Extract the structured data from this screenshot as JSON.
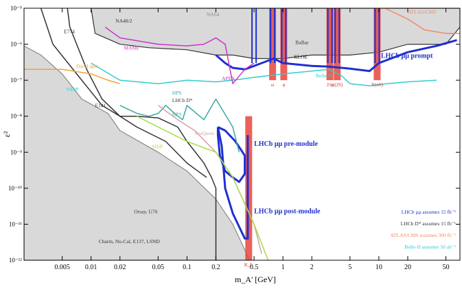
{
  "chart_data": {
    "type": "line",
    "xlabel": "m_A' [GeV]",
    "ylabel": "ε²",
    "x_scale": "log",
    "y_scale": "log",
    "xlim": [
      0.002,
      70
    ],
    "ylim": [
      1e-12,
      1e-05
    ],
    "x_ticks": [
      {
        "v": 0.005,
        "label": "0.005"
      },
      {
        "v": 0.01,
        "label": "0.01"
      },
      {
        "v": 0.02,
        "label": "0.02"
      },
      {
        "v": 0.05,
        "label": "0.05"
      },
      {
        "v": 0.1,
        "label": "0.1"
      },
      {
        "v": 0.2,
        "label": "0.2"
      },
      {
        "v": 0.5,
        "label": "0.5"
      },
      {
        "v": 1,
        "label": "1"
      },
      {
        "v": 2,
        "label": "2"
      },
      {
        "v": 5,
        "label": "5"
      },
      {
        "v": 10,
        "label": "10"
      },
      {
        "v": 20,
        "label": "20"
      },
      {
        "v": 50,
        "label": "50"
      }
    ],
    "y_ticks": [
      {
        "v": 1e-05,
        "label": "10⁻⁵"
      },
      {
        "v": 1e-06,
        "label": "10⁻⁶"
      },
      {
        "v": 1e-07,
        "label": "10⁻⁷"
      },
      {
        "v": 1e-08,
        "label": "10⁻⁸"
      },
      {
        "v": 1e-09,
        "label": "10⁻⁹"
      },
      {
        "v": 1e-10,
        "label": "10⁻¹⁰"
      },
      {
        "v": 1e-11,
        "label": "10⁻¹¹"
      },
      {
        "v": 1e-12,
        "label": "10⁻¹²"
      }
    ],
    "regions": [
      {
        "name": "Charm, Nu-Cal, E137, LSND",
        "color": "#d9d9d9",
        "stroke": "#888888",
        "points": [
          [
            0.002,
            9e-07
          ],
          [
            0.003,
            5e-07
          ],
          [
            0.005,
            1.5e-07
          ],
          [
            0.008,
            3e-08
          ],
          [
            0.015,
            1.2e-08
          ],
          [
            0.02,
            4e-09
          ],
          [
            0.05,
            1e-09
          ],
          [
            0.1,
            3e-10
          ],
          [
            0.2,
            5e-11
          ],
          [
            0.3,
            1e-11
          ],
          [
            0.45,
            1e-12
          ],
          [
            0.002,
            1e-12
          ]
        ]
      },
      {
        "name": "BaBar / NA48/2 / KLOE",
        "color": "#d9d9d9",
        "stroke": "#333333",
        "points": [
          [
            0.01,
            1e-05
          ],
          [
            0.011,
            2e-06
          ],
          [
            0.02,
            1e-06
          ],
          [
            0.04,
            8e-07
          ],
          [
            0.1,
            7e-07
          ],
          [
            0.2,
            5e-07
          ],
          [
            0.3,
            5e-07
          ],
          [
            0.5,
            4e-07
          ],
          [
            1,
            4e-07
          ],
          [
            2,
            5e-07
          ],
          [
            5,
            5e-07
          ],
          [
            10,
            6e-07
          ],
          [
            20,
            1e-06
          ],
          [
            50,
            1e-06
          ],
          [
            70,
            3e-06
          ],
          [
            70,
            1e-05
          ]
        ]
      }
    ],
    "series": [
      {
        "name": "LHCb μμ prompt",
        "color": "#1f2fd0",
        "points": [
          [
            0.2,
            5e-07
          ],
          [
            0.25,
            3e-07
          ],
          [
            0.3,
            2.2e-07
          ],
          [
            0.4,
            2e-07
          ],
          [
            0.6,
            3e-07
          ],
          [
            0.8,
            4e-07
          ],
          [
            1,
            3e-07
          ],
          [
            2,
            2.5e-07
          ],
          [
            3,
            2.4e-07
          ],
          [
            5,
            2.1e-07
          ],
          [
            8,
            1.8e-07
          ],
          [
            10,
            3e-07
          ],
          [
            20,
            6e-07
          ],
          [
            40,
            9e-07
          ],
          [
            65,
            1.3e-06
          ]
        ]
      },
      {
        "name": "LHCb μμ pre-module",
        "color": "#1f2fd0",
        "points": [
          [
            0.21,
            5e-09
          ],
          [
            0.25,
            4e-09
          ],
          [
            0.32,
            2e-09
          ],
          [
            0.38,
            1e-09
          ],
          [
            0.4,
            8e-10
          ],
          [
            0.4,
            2.5e-10
          ],
          [
            0.35,
            1.5e-10
          ],
          [
            0.3,
            2e-10
          ],
          [
            0.25,
            3e-10
          ],
          [
            0.22,
            8e-10
          ],
          [
            0.21,
            3e-09
          ],
          [
            0.21,
            5e-09
          ]
        ]
      },
      {
        "name": "LHCb μμ post-module",
        "color": "#1f2fd0",
        "points": [
          [
            0.21,
            5e-09
          ],
          [
            0.23,
            1.5e-09
          ],
          [
            0.25,
            1e-10
          ],
          [
            0.3,
            2e-11
          ],
          [
            0.4,
            4e-12
          ],
          [
            0.43,
            4e-12
          ],
          [
            0.43,
            3e-09
          ]
        ]
      },
      {
        "name": "LHCb D*",
        "color": "#333333",
        "points": [
          [
            0.003,
            1e-05
          ],
          [
            0.004,
            1e-06
          ],
          [
            0.008,
            1e-07
          ],
          [
            0.013,
            2e-08
          ],
          [
            0.02,
            1e-08
          ],
          [
            0.03,
            1e-08
          ],
          [
            0.05,
            9e-09
          ],
          [
            0.08,
            5e-09
          ],
          [
            0.1,
            2e-09
          ],
          [
            0.15,
            5e-10
          ],
          [
            0.18,
            2e-10
          ],
          [
            0.2,
            1e-10
          ],
          [
            0.2,
            1e-12
          ]
        ]
      },
      {
        "name": "E141 / E774",
        "color": "#333333",
        "points": [
          [
            0.0052,
            6e-05
          ],
          [
            0.006,
            3e-06
          ],
          [
            0.009,
            2e-07
          ],
          [
            0.013,
            3e-08
          ],
          [
            0.02,
            1e-08
          ],
          [
            0.03,
            5e-09
          ],
          [
            0.06,
            2e-09
          ],
          [
            0.1,
            5e-10
          ],
          [
            0.13,
            3e-10
          ],
          [
            0.16,
            2e-10
          ]
        ]
      },
      {
        "name": "HPS",
        "color": "#3aa7a0",
        "points": [
          [
            0.02,
            2e-08
          ],
          [
            0.03,
            1.2e-08
          ],
          [
            0.04,
            1e-08
          ],
          [
            0.05,
            1.2e-08
          ],
          [
            0.06,
            2e-08
          ],
          [
            0.08,
            1e-08
          ],
          [
            0.09,
            8e-09
          ],
          [
            0.1,
            2e-08
          ],
          [
            0.15,
            8e-09
          ],
          [
            0.2,
            3e-08
          ],
          [
            0.3,
            5e-09
          ],
          [
            0.35,
            1e-09
          ]
        ]
      },
      {
        "name": "Belle-II",
        "color": "#33cccc",
        "points": [
          [
            0.01,
            3e-07
          ],
          [
            0.02,
            1e-07
          ],
          [
            0.05,
            8e-08
          ],
          [
            0.1,
            1e-07
          ],
          [
            0.2,
            9e-08
          ],
          [
            0.3,
            1e-07
          ],
          [
            0.5,
            1.2e-07
          ],
          [
            1,
            1.5e-07
          ],
          [
            2,
            1.8e-07
          ],
          [
            3,
            2e-07
          ],
          [
            4,
            1.4e-07
          ],
          [
            5,
            8e-08
          ],
          [
            8,
            7e-08
          ],
          [
            12,
            8e-08
          ],
          [
            20,
            9e-08
          ],
          [
            40,
            1e-07
          ]
        ]
      },
      {
        "name": "DarkLight",
        "color": "#f2a233",
        "points": [
          [
            0.002,
            2e-07
          ],
          [
            0.005,
            2e-07
          ],
          [
            0.01,
            1.5e-07
          ],
          [
            0.015,
            1e-07
          ],
          [
            0.02,
            8e-08
          ]
        ]
      },
      {
        "name": "MAMI / APEX / NA48/2",
        "color": "#cc33cc",
        "points": [
          [
            0.014,
            3e-06
          ],
          [
            0.02,
            1.5e-06
          ],
          [
            0.05,
            1e-06
          ],
          [
            0.1,
            9e-07
          ],
          [
            0.15,
            1e-06
          ],
          [
            0.2,
            1.5e-06
          ],
          [
            0.25,
            1e-06
          ],
          [
            0.3,
            8e-08
          ],
          [
            0.4,
            2e-07
          ],
          [
            0.5,
            3e-07
          ]
        ]
      },
      {
        "name": "SeaQuest",
        "color": "#d9a0a0",
        "points": [
          [
            0.05,
            2e-08
          ],
          [
            0.08,
            8e-09
          ],
          [
            0.12,
            4e-09
          ],
          [
            0.2,
            1e-09
          ],
          [
            0.3,
            2e-10
          ],
          [
            0.5,
            1e-11
          ],
          [
            0.6,
            1.5e-12
          ]
        ]
      },
      {
        "name": "SHiP",
        "color": "#a6dc41",
        "points": [
          [
            0.03,
            1e-08
          ],
          [
            0.05,
            5e-09
          ],
          [
            0.1,
            2e-09
          ],
          [
            0.2,
            1e-09
          ],
          [
            0.3,
            2e-10
          ],
          [
            0.5,
            1e-11
          ],
          [
            0.7,
            1e-12
          ]
        ]
      },
      {
        "name": "ATLAS/CMS",
        "color": "#f08a6a",
        "points": [
          [
            10,
            1.2e-05
          ],
          [
            20,
            5e-06
          ],
          [
            30,
            2.5e-06
          ],
          [
            50,
            2e-06
          ],
          [
            70,
            2e-06
          ]
        ]
      }
    ],
    "red_bands": [
      {
        "x": 0.44,
        "y0": 1e-12,
        "y1": 1e-08,
        "label": "K_L"
      },
      {
        "x": 0.78,
        "y0": 1e-07,
        "y1": 1e-05,
        "label": "ω"
      },
      {
        "x": 1.02,
        "y0": 1e-07,
        "y1": 1e-05,
        "label": "φ"
      },
      {
        "x": 3.09,
        "y0": 1e-07,
        "y1": 1e-05,
        "label": "J/ψ"
      },
      {
        "x": 3.68,
        "y0": 1e-07,
        "y1": 1e-05,
        "label": "ψ(2S)"
      },
      {
        "x": 9.6,
        "y0": 1e-07,
        "y1": 1e-05,
        "label": "Υ(nS)"
      }
    ],
    "blue_spikes": [
      0.5,
      0.78,
      1.02,
      3.09,
      3.68,
      9.6
    ],
    "labels": [
      {
        "text": "E774",
        "x": 0.0052,
        "y": 2e-06,
        "color": "#333333"
      },
      {
        "text": "NA48/2",
        "x": 0.018,
        "y": 4e-06,
        "color": "#333333"
      },
      {
        "text": "KLOE",
        "x": 1.3,
        "y": 4e-07,
        "color": "#111111"
      },
      {
        "text": "BaBar",
        "x": 1.35,
        "y": 1e-06,
        "color": "#333333"
      },
      {
        "text": "DarkLight",
        "x": 0.007,
        "y": 2.2e-07,
        "color": "#f2a233"
      },
      {
        "text": "MAMI",
        "x": 0.022,
        "y": 7e-07,
        "color": "#cc33cc"
      },
      {
        "text": "APEX",
        "x": 0.23,
        "y": 1e-07,
        "color": "#cc33cc"
      },
      {
        "text": "HPS",
        "x": 0.07,
        "y": 4e-08,
        "color": "#3aa7a0"
      },
      {
        "text": "HPS",
        "x": 0.07,
        "y": 1e-08,
        "color": "#3aa7a0"
      },
      {
        "text": "VEPP",
        "x": 0.0055,
        "y": 5e-08,
        "color": "#33cccc"
      },
      {
        "text": "E141",
        "x": 0.011,
        "y": 1.8e-08,
        "color": "#333333"
      },
      {
        "text": "LHCb D*",
        "x": 0.07,
        "y": 2.5e-08,
        "color": "#333333"
      },
      {
        "text": "Belle-II",
        "x": 2.2,
        "y": 1.2e-07,
        "color": "#33cccc"
      },
      {
        "text": "SeaQuest",
        "x": 0.12,
        "y": 3e-09,
        "color": "#d9a0a0"
      },
      {
        "text": "SHiP",
        "x": 0.043,
        "y": 1.3e-09,
        "color": "#a6dc41"
      },
      {
        "text": "Orsay, U70",
        "x": 0.028,
        "y": 2e-11,
        "color": "#333333"
      },
      {
        "text": "Charm, Nu-Cal, E137, LSND",
        "x": 0.012,
        "y": 3e-12,
        "color": "#333333"
      },
      {
        "text": "LHCb μμ prompt",
        "x": 10.5,
        "y": 4.2e-07,
        "color": "#1f2fd0"
      },
      {
        "text": "LHCb μμ pre-module",
        "x": 0.5,
        "y": 1.5e-09,
        "color": "#1f2fd0"
      },
      {
        "text": "LHCb μμ post-module",
        "x": 0.5,
        "y": 2e-11,
        "color": "#1f2fd0"
      },
      {
        "text": "ATLAS/CMS",
        "x": 20,
        "y": 7e-06,
        "color": "#f08a6a"
      },
      {
        "text": "NA64",
        "x": 0.16,
        "y": 6e-06,
        "color": "#888888"
      }
    ],
    "legend_notes": [
      {
        "text": "LHCb μμ assumes 15 fb⁻¹",
        "color": "#1f2fd0"
      },
      {
        "text": "LHCb D* assumes 15 fb⁻¹",
        "color": "#333333"
      },
      {
        "text": "ATLAS/CMS assumes 300 fb⁻¹",
        "color": "#f08a6a"
      },
      {
        "text": "Belle-II assumes 50 ab⁻¹",
        "color": "#33cccc"
      }
    ]
  }
}
